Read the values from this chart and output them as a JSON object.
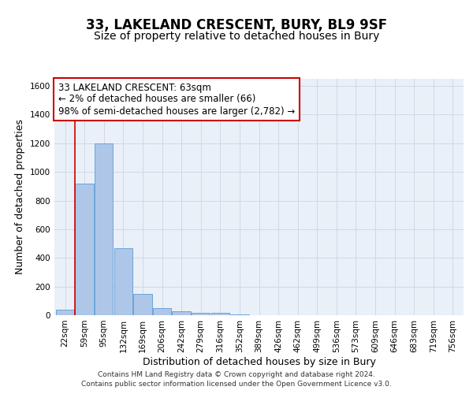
{
  "title1": "33, LAKELAND CRESCENT, BURY, BL9 9SF",
  "title2": "Size of property relative to detached houses in Bury",
  "xlabel": "Distribution of detached houses by size in Bury",
  "ylabel": "Number of detached properties",
  "categories": [
    "22sqm",
    "59sqm",
    "95sqm",
    "132sqm",
    "169sqm",
    "206sqm",
    "242sqm",
    "279sqm",
    "316sqm",
    "352sqm",
    "389sqm",
    "426sqm",
    "462sqm",
    "499sqm",
    "536sqm",
    "573sqm",
    "609sqm",
    "646sqm",
    "683sqm",
    "719sqm",
    "756sqm"
  ],
  "values": [
    40,
    920,
    1200,
    470,
    150,
    50,
    30,
    15,
    15,
    5,
    0,
    0,
    0,
    0,
    0,
    0,
    0,
    0,
    0,
    0,
    0
  ],
  "bar_color": "#aec6e8",
  "bar_edge_color": "#5b9bd5",
  "grid_color": "#d0d8e8",
  "bg_color": "#eaf0f8",
  "annotation_text": "33 LAKELAND CRESCENT: 63sqm\n← 2% of detached houses are smaller (66)\n98% of semi-detached houses are larger (2,782) →",
  "annotation_box_color": "#ffffff",
  "annotation_box_edge": "#cc0000",
  "vline_x": 0.5,
  "vline_color": "#cc0000",
  "ylim": [
    0,
    1650
  ],
  "yticks": [
    0,
    200,
    400,
    600,
    800,
    1000,
    1200,
    1400,
    1600
  ],
  "footer": "Contains HM Land Registry data © Crown copyright and database right 2024.\nContains public sector information licensed under the Open Government Licence v3.0.",
  "title1_fontsize": 12,
  "title2_fontsize": 10,
  "annot_fontsize": 8.5,
  "axis_label_fontsize": 9,
  "tick_fontsize": 7.5,
  "footer_fontsize": 6.5
}
